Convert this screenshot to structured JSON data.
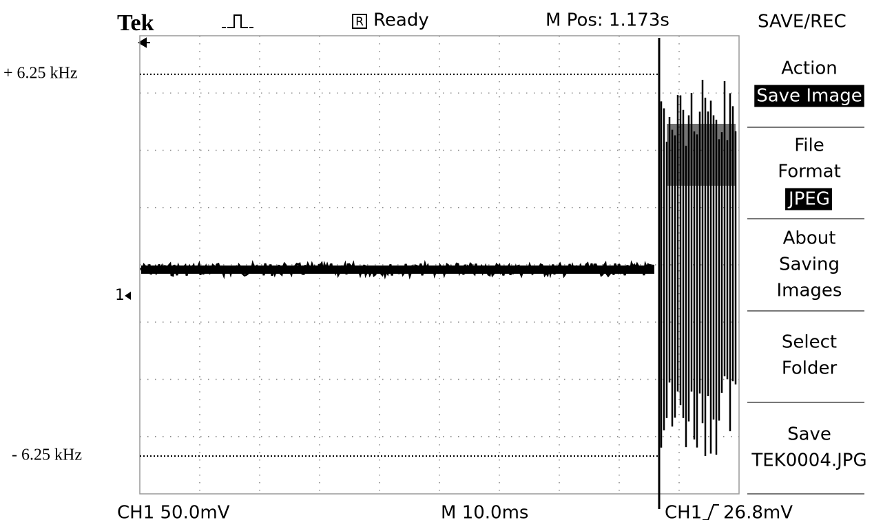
{
  "header": {
    "brand": "Tek",
    "status_icon": "R",
    "status": "Ready",
    "position": "M Pos: 1.173s",
    "menu_title": "SAVE/REC"
  },
  "annotations": {
    "upper": "+ 6.25 kHz",
    "lower": "- 6.25 kHz",
    "channel_marker": "1"
  },
  "menu": [
    {
      "lines": [
        "Action"
      ],
      "value": "Save Image"
    },
    {
      "lines": [
        "File",
        "Format"
      ],
      "value": "JPEG"
    },
    {
      "lines": [
        "About",
        "Saving",
        "Images"
      ]
    },
    {
      "lines": [
        "Select",
        "Folder"
      ]
    },
    {
      "lines": [
        "Save",
        "TEK0004.JPG"
      ]
    }
  ],
  "footer": {
    "ch1_scale": "CH1  50.0mV",
    "timebase": "M 10.0ms",
    "trigger_source": "CH1",
    "trigger_level": "26.8mV"
  }
}
